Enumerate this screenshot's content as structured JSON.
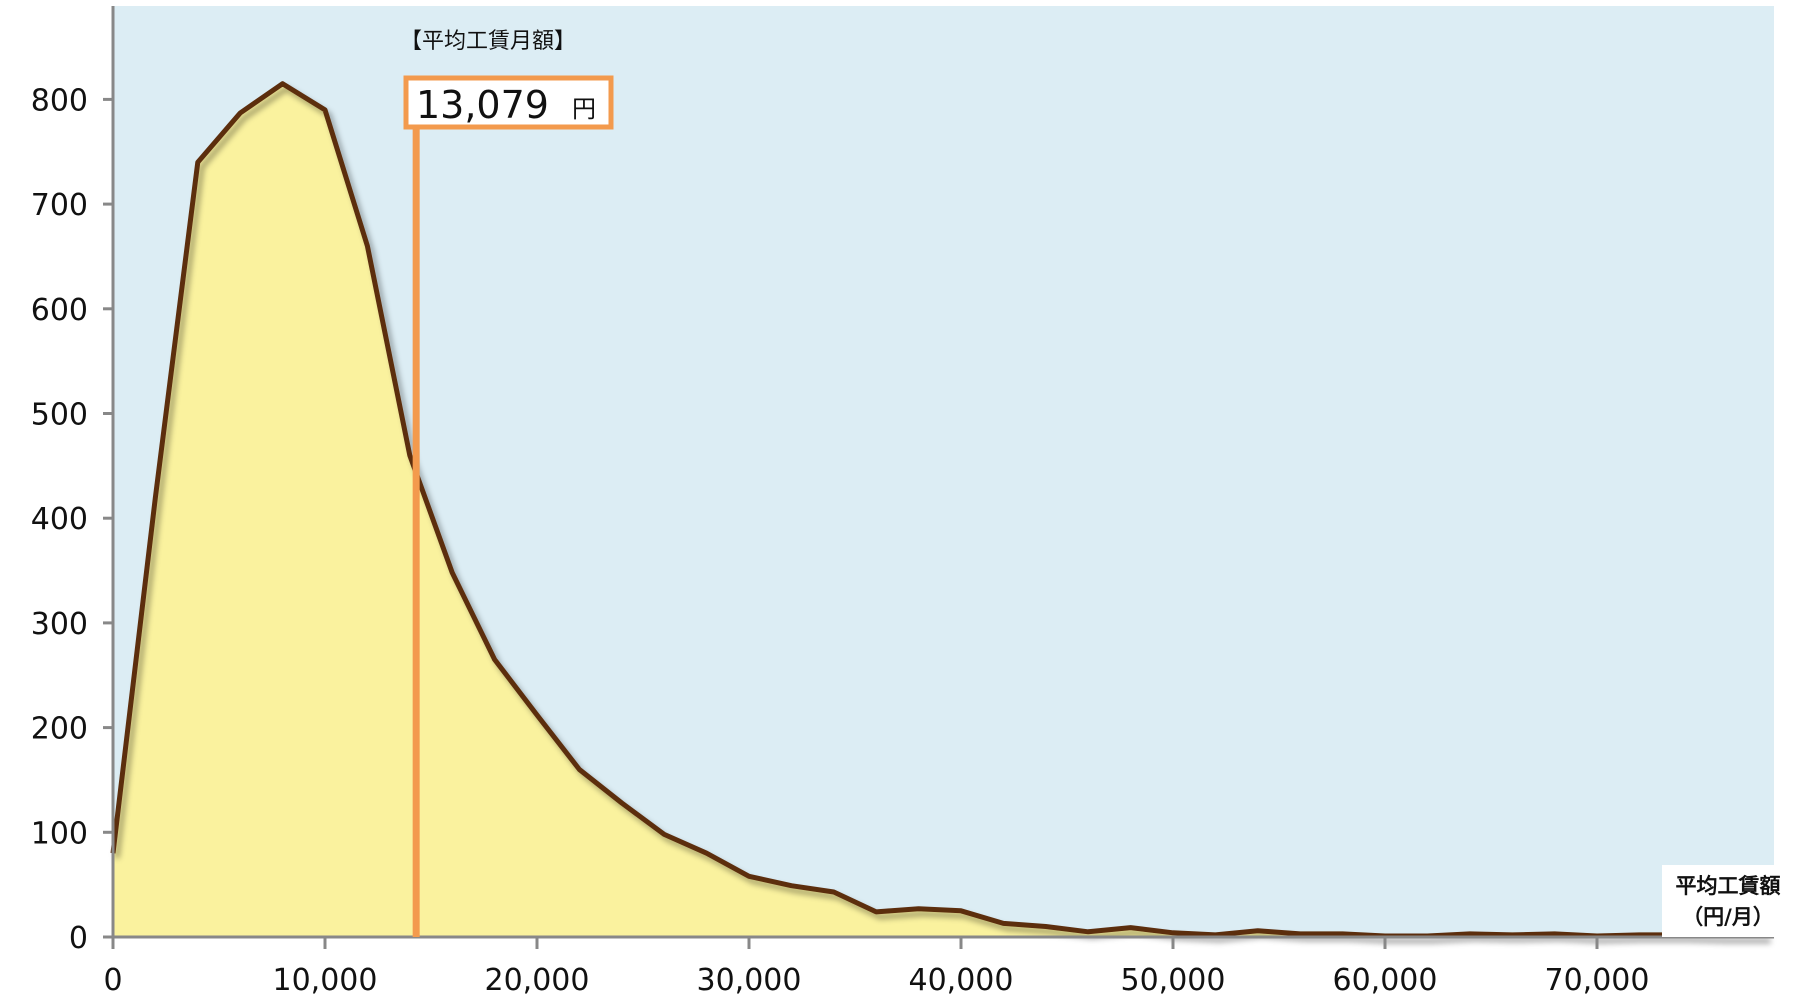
{
  "chart_data": {
    "type": "area",
    "x": [
      0,
      2000,
      4000,
      6000,
      8000,
      10000,
      12000,
      14000,
      16000,
      18000,
      20000,
      22000,
      24000,
      26000,
      28000,
      30000,
      32000,
      34000,
      36000,
      38000,
      40000,
      42000,
      44000,
      46000,
      48000,
      50000,
      52000,
      54000,
      56000,
      58000,
      60000,
      62000,
      64000,
      66000,
      68000,
      70000,
      72000,
      74000,
      76000,
      78000
    ],
    "values": [
      80,
      420,
      740,
      787,
      815,
      790,
      660,
      460,
      348,
      265,
      212,
      160,
      128,
      98,
      80,
      58,
      49,
      43,
      24,
      27,
      25,
      13,
      10,
      5,
      9,
      4,
      2,
      6,
      3,
      3,
      1,
      1,
      3,
      2,
      3,
      1,
      2,
      2,
      1,
      1
    ],
    "xlim": [
      0,
      78000
    ],
    "ylim": [
      0,
      900
    ],
    "xticks": [
      0,
      10000,
      20000,
      30000,
      40000,
      50000,
      60000,
      70000
    ],
    "xtick_labels": [
      "0",
      "10,000",
      "20,000",
      "30,000",
      "40,000",
      "50,000",
      "60,000",
      "70,000"
    ],
    "yticks": [
      0,
      100,
      200,
      300,
      400,
      500,
      600,
      700,
      800
    ],
    "ytick_labels": [
      "0",
      "100",
      "200",
      "300",
      "400",
      "500",
      "600",
      "700",
      "800"
    ],
    "xlabel_line1": "平均工賃額",
    "xlabel_line2": "（円/月）",
    "ylabel": "",
    "title": "",
    "grid": false,
    "annotation": {
      "title": "【平均工賃月額】",
      "value": "13,079",
      "unit": "円",
      "x": 14300
    },
    "colors": {
      "plot_background": "#dcedf4",
      "area_fill": "#faf29e",
      "line": "#5c2e10",
      "marker_line": "#f39a4d",
      "axis": "#888888"
    }
  }
}
